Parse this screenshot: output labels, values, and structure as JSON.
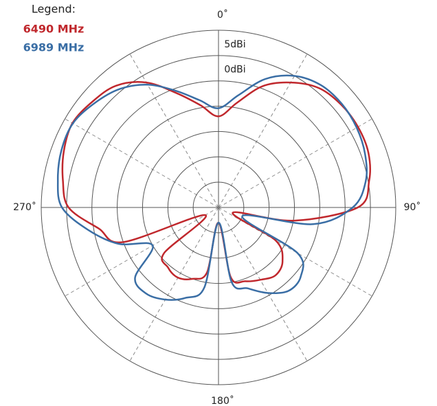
{
  "chart_data": {
    "type": "polar",
    "legend_title": "Legend:",
    "legend": "top-left",
    "rlim": [
      -25,
      10
    ],
    "rticks": [
      {
        "value": -20,
        "label": null
      },
      {
        "value": -15,
        "label": null
      },
      {
        "value": -10,
        "label": null
      },
      {
        "value": -5,
        "label": null
      },
      {
        "value": 0,
        "label": "0dBi"
      },
      {
        "value": 5,
        "label": "5dBi"
      },
      {
        "value": 10,
        "label": null
      }
    ],
    "thetaticks": [
      {
        "value": 0,
        "label": "0˚"
      },
      {
        "value": 30,
        "label": null
      },
      {
        "value": 60,
        "label": null
      },
      {
        "value": 90,
        "label": "90˚"
      },
      {
        "value": 120,
        "label": null
      },
      {
        "value": 150,
        "label": null
      },
      {
        "value": 180,
        "label": "180˚"
      },
      {
        "value": 210,
        "label": null
      },
      {
        "value": 240,
        "label": null
      },
      {
        "value": 270,
        "label": "270˚"
      },
      {
        "value": 300,
        "label": null
      },
      {
        "value": 330,
        "label": null
      }
    ],
    "theta": [
      0,
      10,
      20,
      30,
      40,
      50,
      60,
      70,
      80,
      90,
      100,
      110,
      120,
      130,
      140,
      150,
      160,
      170,
      180,
      190,
      200,
      210,
      220,
      230,
      240,
      250,
      260,
      270,
      280,
      290,
      300,
      310,
      320,
      330,
      340,
      350
    ],
    "series": [
      {
        "name": "6490 MHz",
        "color": "#c0282d",
        "values": [
          -7,
          -4,
          0.5,
          3.5,
          5.8,
          6.6,
          6.8,
          6.5,
          5.2,
          2.5,
          -10,
          -22,
          -12,
          -8.5,
          -7.5,
          -8.5,
          -9.5,
          -11,
          -22,
          -12,
          -10,
          -9,
          -9.5,
          -11,
          -22,
          -5,
          -1,
          4.6,
          6.2,
          7.5,
          8.3,
          7.5,
          6.4,
          3.5,
          -1,
          -4.5
        ]
      },
      {
        "name": "6989 MHz",
        "color": "#3a6ea5",
        "values": [
          -5.4,
          -2.5,
          2,
          5,
          6.5,
          6.8,
          6.5,
          5.8,
          4.5,
          1.5,
          -6,
          -20,
          -7,
          -3.8,
          -3.5,
          -5.5,
          -8,
          -10,
          -22,
          -9,
          -6,
          -4,
          -2.8,
          -3.5,
          -10,
          -4,
          1,
          5.9,
          7.2,
          8,
          8.2,
          7,
          5.5,
          3,
          -0.5,
          -3.5
        ]
      }
    ]
  }
}
